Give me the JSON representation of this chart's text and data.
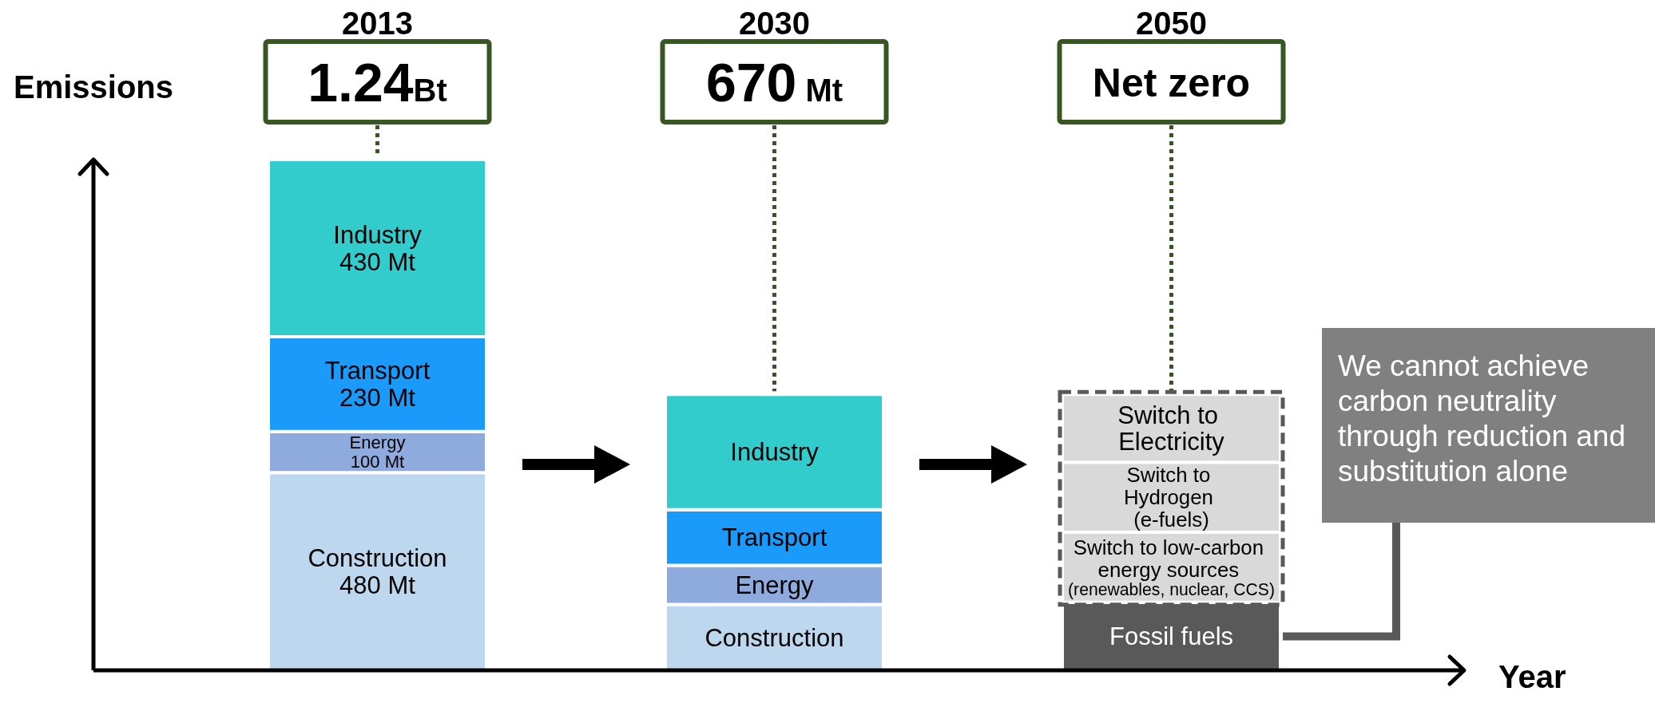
{
  "chart_data": {
    "type": "bar",
    "stacked": true,
    "xlabel": "Year",
    "ylabel": "Emissions",
    "tick_labels": "x",
    "categories": [
      "2013",
      "2030",
      "2050"
    ],
    "series": [
      {
        "name": "Construction",
        "color": "#bdd7ee",
        "values": [
          480,
          160,
          null
        ],
        "value_labels": [
          "480 Mt",
          null,
          null
        ]
      },
      {
        "name": "Energy",
        "color": "#8faadc",
        "values": [
          100,
          95,
          null
        ],
        "value_labels": [
          "100 Mt",
          null,
          null
        ]
      },
      {
        "name": "Transport",
        "color": "#1a9bfc",
        "values": [
          230,
          135,
          null
        ],
        "value_labels": [
          "230 Mt",
          null,
          null
        ]
      },
      {
        "name": "Industry",
        "color": "#33cccc",
        "values": [
          430,
          280,
          null
        ],
        "value_labels": [
          "430 Mt",
          null,
          null
        ]
      },
      {
        "name": "Fossil fuels",
        "color": "#595959",
        "values": [
          null,
          null,
          165
        ]
      },
      {
        "name": "Switch to low-carbon\nenergy sources\n(renewables, nuclear, CCS)",
        "color": "#d9d9d9",
        "values": [
          null,
          null,
          170
        ],
        "line_style": "dashed"
      },
      {
        "name": "Switch to\nHydrogen\n(e-fuels)",
        "color": "#d9d9d9",
        "values": [
          null,
          null,
          170
        ],
        "line_style": "dashed"
      },
      {
        "name": "Switch to\nElectricity",
        "color": "#d9d9d9",
        "values": [
          null,
          null,
          165
        ],
        "line_style": "dashed"
      }
    ],
    "annotations": [
      {
        "text": "1.24Bt",
        "x": "2013",
        "y": 1240
      },
      {
        "text": "670 Mt",
        "x": "2030",
        "y": 670
      },
      {
        "text": "Net zero",
        "x": "2050",
        "y": 670
      },
      "We cannot achieve carbon neutrality through reduction and substitution alone"
    ]
  }
}
